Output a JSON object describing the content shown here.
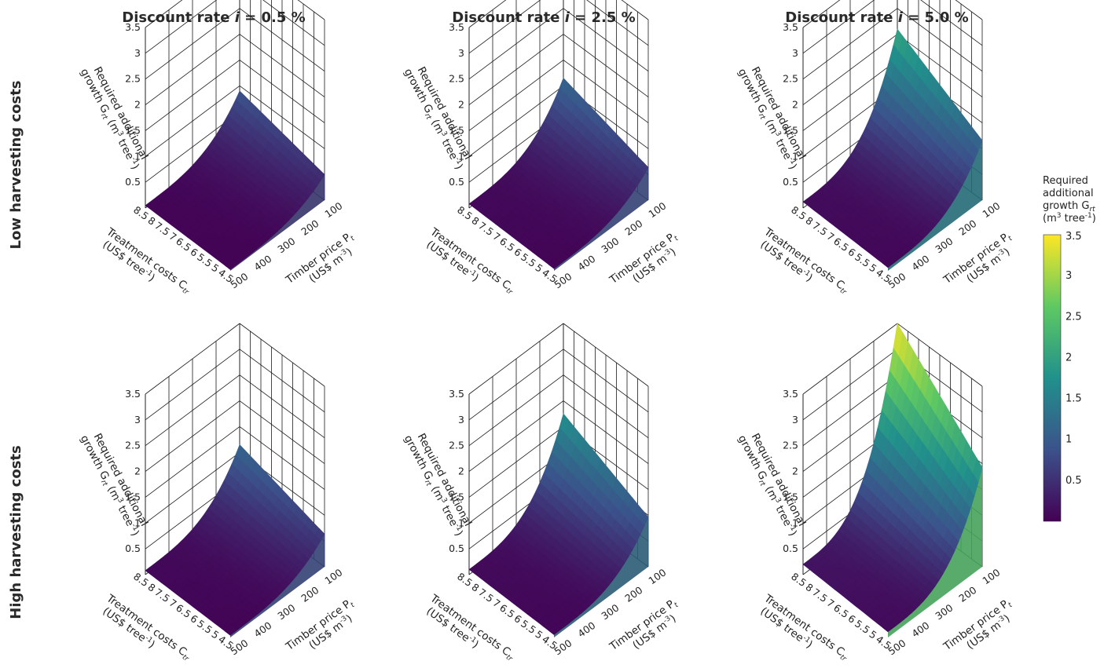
{
  "column_titles": [
    {
      "prefix": "Discount rate ",
      "var": "i",
      "suffix": " = 0.5 %"
    },
    {
      "prefix": "Discount rate ",
      "var": "i",
      "suffix": " = 2.5 %"
    },
    {
      "prefix": "Discount rate ",
      "var": "i",
      "suffix": " = 5.0 %"
    }
  ],
  "row_titles": [
    "Low harvesting costs",
    "High harvesting costs"
  ],
  "axes": {
    "z_ticks": [
      "0.5",
      "1",
      "1.5",
      "2",
      "2.5",
      "3",
      "3.5"
    ],
    "y_ticks": [
      "8.5",
      "8",
      "7.5",
      "7",
      "6.5",
      "6",
      "5.5",
      "5",
      "4.5"
    ],
    "x_ticks": [
      "100",
      "200",
      "300",
      "400",
      "500"
    ],
    "z_label_line1": "Required additional",
    "z_label_line2_a": "growth G",
    "z_label_line2_sub": "rt",
    "z_label_line2_b": " (m",
    "z_label_line2_sup": "3",
    "z_label_line2_c": " tree",
    "z_label_line2_sup2": "-1",
    "z_label_line2_d": ")",
    "y_label_line1_a": "Treatment costs C",
    "y_label_line1_sub": "tr",
    "y_label_line2_a": "(US$ tree",
    "y_label_line2_sup": "-1",
    "y_label_line2_b": ")",
    "x_label_line1_a": "Timber price P",
    "x_label_line1_sub": "t",
    "x_label_line2_a": "(US$ m",
    "x_label_line2_sup": "-3",
    "x_label_line2_b": ")"
  },
  "colorbar": {
    "title_line1": "Required",
    "title_line2": "additional",
    "title_line3_a": "growth G",
    "title_line3_sub": "rt",
    "title_line4_a": "(m",
    "title_line4_sup": "3",
    "title_line4_b": " tree",
    "title_line4_sup2": "-1",
    "title_line4_c": ")",
    "ticks": [
      "3.5",
      "3",
      "2.5",
      "2",
      "1.5",
      "1",
      "0.5"
    ],
    "colors": [
      "#440154",
      "#3b528b",
      "#21918c",
      "#5ec962",
      "#fde725"
    ]
  },
  "chart_data": [
    {
      "type": "surface",
      "row": "Low harvesting costs",
      "column": "Discount rate i = 0.5 %",
      "x": "Timber price",
      "y": "Treatment costs",
      "zlim": [
        0,
        3.5
      ],
      "xlim": [
        100,
        500
      ],
      "ylim": [
        4.5,
        8.5
      ],
      "peak_at": {
        "x": 100,
        "y": 8.5,
        "z": 0.9
      },
      "z_at_x500": 0.05
    },
    {
      "type": "surface",
      "row": "Low harvesting costs",
      "column": "Discount rate i = 2.5 %",
      "x": "Timber price",
      "y": "Treatment costs",
      "zlim": [
        0,
        3.5
      ],
      "xlim": [
        100,
        500
      ],
      "ylim": [
        4.5,
        8.5
      ],
      "peak_at": {
        "x": 100,
        "y": 8.5,
        "z": 1.15
      },
      "z_at_x500": 0.08
    },
    {
      "type": "surface",
      "row": "Low harvesting costs",
      "column": "Discount rate i = 5.0 %",
      "x": "Timber price",
      "y": "Treatment costs",
      "zlim": [
        0,
        3.5
      ],
      "xlim": [
        100,
        500
      ],
      "ylim": [
        4.5,
        8.5
      ],
      "peak_at": {
        "x": 100,
        "y": 8.5,
        "z": 2.1
      },
      "z_at_x500": 0.12
    },
    {
      "type": "surface",
      "row": "High harvesting costs",
      "column": "Discount rate i = 0.5 %",
      "x": "Timber price",
      "y": "Treatment costs",
      "zlim": [
        0,
        3.5
      ],
      "xlim": [
        100,
        500
      ],
      "ylim": [
        4.5,
        8.5
      ],
      "peak_at": {
        "x": 100,
        "y": 8.5,
        "z": 1.15
      },
      "z_at_x500": 0.08
    },
    {
      "type": "surface",
      "row": "High harvesting costs",
      "column": "Discount rate i = 2.5 %",
      "x": "Timber price",
      "y": "Treatment costs",
      "zlim": [
        0,
        3.5
      ],
      "xlim": [
        100,
        500
      ],
      "ylim": [
        4.5,
        8.5
      ],
      "peak_at": {
        "x": 100,
        "y": 8.5,
        "z": 1.75
      },
      "z_at_x500": 0.1
    },
    {
      "type": "surface",
      "row": "High harvesting costs",
      "column": "Discount rate i = 5.0 %",
      "x": "Timber price",
      "y": "Treatment costs",
      "zlim": [
        0,
        3.5
      ],
      "xlim": [
        100,
        500
      ],
      "ylim": [
        4.5,
        8.5
      ],
      "peak_at": {
        "x": 100,
        "y": 8.5,
        "z": 3.5
      },
      "z_at_x500": 0.2
    }
  ]
}
